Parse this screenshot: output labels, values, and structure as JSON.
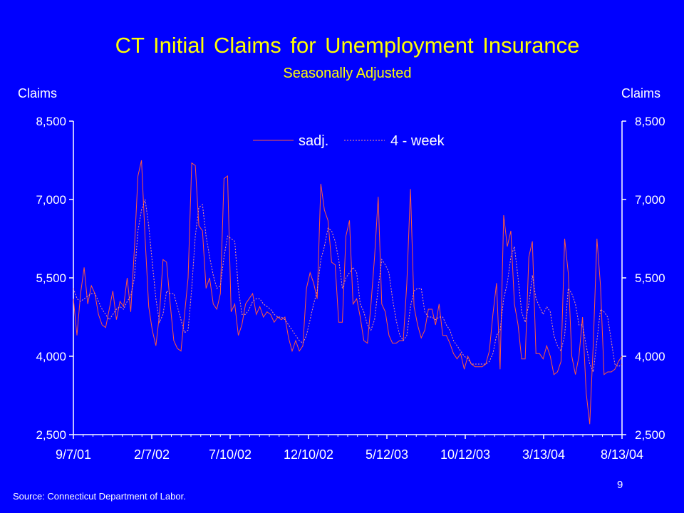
{
  "chart_data": {
    "type": "line",
    "title": "CT Initial Claims for Unemployment Insurance",
    "subtitle": "Seasonally Adjusted",
    "ylabel_left": "Claims",
    "ylabel_right": "Claims",
    "ylim": [
      2500,
      8500
    ],
    "yticks": [
      2500,
      4000,
      5500,
      7000,
      8500
    ],
    "ytick_labels": [
      "2,500",
      "4,000",
      "5,500",
      "7,000",
      "8,500"
    ],
    "xtick_labels": [
      "9/7/01",
      "2/7/02",
      "7/10/02",
      "12/10/02",
      "5/12/03",
      "10/12/03",
      "3/13/04",
      "8/13/04"
    ],
    "legend": {
      "placement": "top-center",
      "entries": [
        "sadj.",
        "4 - week"
      ]
    },
    "colors": {
      "sadj": "#FF5A3C",
      "four_week": "#FF9A8A",
      "axis": "#FFFFFF",
      "text": "#FFFFFF",
      "title": "#FFFF00",
      "background": "#0000FF"
    },
    "series": [
      {
        "name": "sadj.",
        "style": "solid",
        "values": [
          5100,
          4400,
          5200,
          5700,
          5000,
          5350,
          5200,
          4800,
          4600,
          4550,
          4900,
          5250,
          4700,
          5050,
          4950,
          5500,
          4850,
          6050,
          7450,
          7750,
          6250,
          4950,
          4500,
          4200,
          4800,
          5850,
          5800,
          5000,
          4300,
          4150,
          4100,
          4800,
          5500,
          7700,
          7650,
          6500,
          6400,
          5300,
          5500,
          5000,
          4900,
          5200,
          7400,
          7450,
          4850,
          5000,
          4400,
          4600,
          5000,
          5100,
          5200,
          4800,
          4950,
          4750,
          4850,
          4800,
          4650,
          4750,
          4700,
          4750,
          4350,
          4100,
          4300,
          4100,
          4200,
          5300,
          5600,
          5400,
          5100,
          7300,
          6800,
          6600,
          5800,
          5750,
          4650,
          4650,
          6300,
          6600,
          5000,
          5100,
          4750,
          4300,
          4250,
          5000,
          5900,
          7050,
          5000,
          4850,
          4400,
          4250,
          4250,
          4300,
          4300,
          5400,
          7200,
          4950,
          4600,
          4350,
          4500,
          4900,
          4900,
          4600,
          5000,
          4400,
          4400,
          4250,
          4050,
          3950,
          4050,
          3750,
          4000,
          3850,
          3800,
          3800,
          3800,
          3850,
          4100,
          4800,
          5400,
          3750,
          6700,
          6100,
          6400,
          5000,
          4600,
          3950,
          3950,
          5900,
          6200,
          4050,
          4050,
          3950,
          4200,
          4000,
          3650,
          3700,
          3900,
          6250,
          5600,
          4000,
          3650,
          4000,
          4750,
          3300,
          2700,
          4250,
          6250,
          5350,
          3650,
          3700,
          3700,
          3750,
          3900,
          4000
        ]
      },
      {
        "name": "4 - week",
        "style": "dashed",
        "values": [
          5300,
          5100,
          5050,
          5100,
          5150,
          5200,
          5200,
          5050,
          4900,
          4800,
          4700,
          4800,
          4900,
          4950,
          4900,
          5050,
          5150,
          5500,
          6400,
          6800,
          7000,
          6500,
          5800,
          5100,
          4650,
          4800,
          5250,
          5200,
          5200,
          4950,
          4700,
          4450,
          4500,
          5300,
          6300,
          6850,
          6900,
          6300,
          5900,
          5550,
          5300,
          5350,
          5900,
          6300,
          6250,
          6200,
          5300,
          4800,
          4800,
          4900,
          5050,
          5100,
          5100,
          5000,
          4950,
          4900,
          4800,
          4750,
          4750,
          4700,
          4600,
          4500,
          4400,
          4300,
          4250,
          4400,
          4700,
          5000,
          5250,
          5850,
          6100,
          6450,
          6400,
          6200,
          5850,
          5300,
          5500,
          5600,
          5700,
          5600,
          5000,
          4850,
          4600,
          4500,
          4700,
          5300,
          5850,
          5750,
          5600,
          5100,
          4700,
          4400,
          4300,
          4400,
          4950,
          5250,
          5300,
          5300,
          4850,
          4750,
          4750,
          4700,
          4750,
          4750,
          4600,
          4500,
          4300,
          4200,
          4100,
          4000,
          3950,
          3850,
          3850,
          3850,
          3850,
          3850,
          3900,
          4050,
          4400,
          4500,
          5100,
          5400,
          5900,
          6100,
          5500,
          4850,
          4650,
          5000,
          5550,
          5100,
          4950,
          4800,
          4950,
          4850,
          4400,
          4200,
          4100,
          4400,
          5300,
          5200,
          5000,
          4600,
          4600,
          4200,
          3850,
          3700,
          4300,
          4900,
          4850,
          4750,
          4300,
          3850,
          3800,
          3850
        ]
      }
    ]
  },
  "footer": {
    "source": "Source: Connecticut Department of Labor.",
    "page_number": "9"
  }
}
